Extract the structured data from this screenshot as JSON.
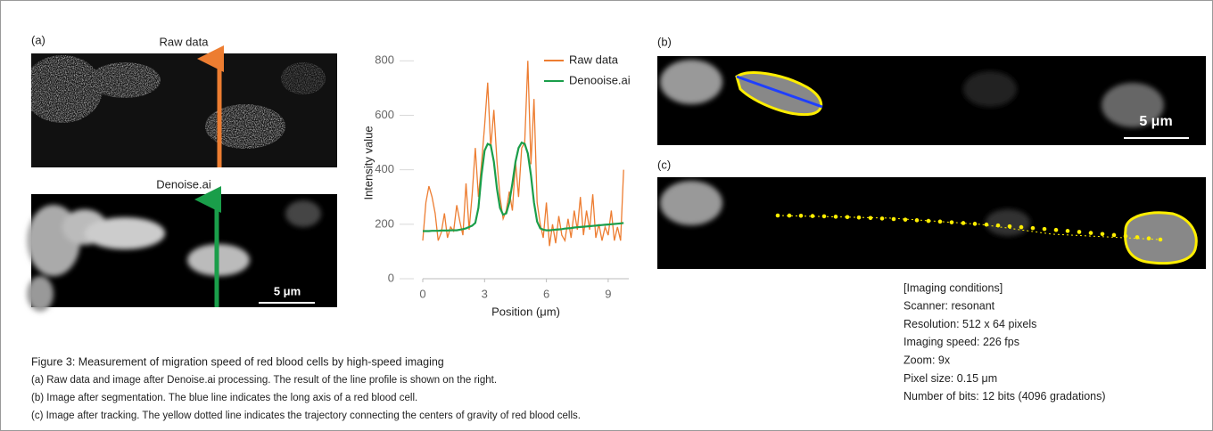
{
  "panel_labels": {
    "a": "(a)",
    "b": "(b)",
    "c": "(c)"
  },
  "raw_image_title": "Raw data",
  "denoise_image_title": "Denoise.ai",
  "scale_bars": [
    "5 μm",
    "5 μm"
  ],
  "chart_data": {
    "type": "line",
    "xlabel": "Position (μm)",
    "ylabel": "Intensity value",
    "x": [
      0,
      0.15,
      0.3,
      0.45,
      0.6,
      0.75,
      0.9,
      1.05,
      1.2,
      1.35,
      1.5,
      1.65,
      1.8,
      1.95,
      2.1,
      2.25,
      2.4,
      2.55,
      2.7,
      2.85,
      3.0,
      3.15,
      3.3,
      3.45,
      3.6,
      3.75,
      3.9,
      4.05,
      4.2,
      4.35,
      4.5,
      4.65,
      4.8,
      4.95,
      5.1,
      5.25,
      5.4,
      5.55,
      5.7,
      5.85,
      6.0,
      6.15,
      6.3,
      6.45,
      6.6,
      6.75,
      6.9,
      7.05,
      7.2,
      7.35,
      7.5,
      7.65,
      7.8,
      7.95,
      8.1,
      8.25,
      8.4,
      8.55,
      8.7,
      8.85,
      9.0,
      9.15,
      9.3,
      9.45,
      9.6,
      9.75
    ],
    "series": [
      {
        "name": "Raw data",
        "color": "#ed7d31",
        "values": [
          140,
          280,
          340,
          300,
          240,
          140,
          170,
          240,
          150,
          190,
          175,
          270,
          210,
          160,
          350,
          180,
          310,
          480,
          300,
          420,
          560,
          720,
          480,
          620,
          430,
          300,
          220,
          250,
          320,
          250,
          430,
          300,
          480,
          500,
          800,
          420,
          660,
          280,
          200,
          150,
          280,
          120,
          200,
          130,
          230,
          160,
          140,
          220,
          150,
          250,
          180,
          300,
          160,
          250,
          180,
          310,
          150,
          200,
          140,
          190,
          160,
          250,
          140,
          190,
          140,
          400
        ]
      },
      {
        "name": "Denooise.ai",
        "color": "#1a9e4a",
        "values": [
          175,
          175,
          175,
          176,
          176,
          176,
          177,
          177,
          177,
          178,
          178,
          178,
          180,
          182,
          185,
          190,
          195,
          205,
          260,
          380,
          470,
          495,
          490,
          430,
          330,
          260,
          235,
          240,
          280,
          350,
          430,
          480,
          500,
          495,
          460,
          380,
          280,
          210,
          185,
          180,
          178,
          178,
          179,
          180,
          181,
          182,
          184,
          185,
          186,
          188,
          189,
          190,
          191,
          192,
          193,
          194,
          195,
          196,
          197,
          198,
          199,
          200,
          201,
          202,
          203,
          205
        ]
      }
    ],
    "xlim": [
      0,
      10
    ],
    "ylim": [
      0,
      850
    ],
    "xticks": [
      0,
      3,
      6,
      9
    ],
    "yticks": [
      0,
      200,
      400,
      600,
      800
    ],
    "grid": false,
    "legend": "upper right"
  },
  "caption": {
    "title": "Figure 3: Measurement of migration speed of red blood cells by high-speed imaging",
    "lines": [
      "(a) Raw data and image after Denoise.ai processing. The result of the line profile is shown on the right.",
      "(b) Image after segmentation. The blue line indicates the long axis of a red blood cell.",
      "(c) Image after tracking. The yellow dotted line indicates the trajectory connecting the centers of gravity of red blood cells."
    ]
  },
  "imaging_conditions": [
    "[Imaging conditions]",
    "Scanner: resonant",
    "Resolution: 512 x 64 pixels",
    "Imaging speed: 226 fps",
    "Zoom: 9x",
    "Pixel size: 0.15 μm",
    "Number of bits: 12 bits (4096 gradations)"
  ]
}
